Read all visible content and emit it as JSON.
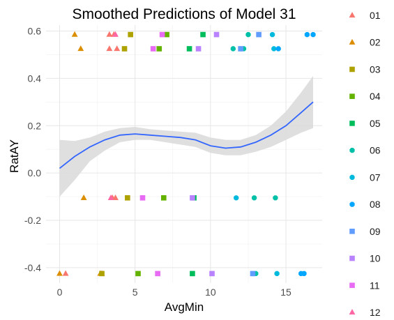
{
  "chart_data": {
    "type": "scatter",
    "title": "Smoothed Predictions of Model 31",
    "xlabel": "AvgMin",
    "ylabel": "RatAY",
    "xlim": [
      -0.9,
      17.4
    ],
    "ylim": [
      -0.465,
      0.625
    ],
    "x_ticks": [
      0,
      5,
      10,
      15
    ],
    "x_tick_labels": [
      "0",
      "5",
      "10",
      "15"
    ],
    "y_ticks": [
      -0.4,
      -0.2,
      0.0,
      0.2,
      0.4,
      0.6
    ],
    "y_tick_labels": [
      "-0.4",
      "-0.2",
      "0.0",
      "0.2",
      "0.4",
      "0.6"
    ],
    "grid": true,
    "legend_position": "right",
    "series": [
      {
        "name": "01",
        "color": "#F8766D",
        "shape": "triangle",
        "points": [
          [
            3.3,
            0.585
          ],
          [
            3.6,
            0.585
          ],
          [
            3.3,
            0.525
          ],
          [
            3.8,
            0.525
          ],
          [
            3.5,
            -0.105
          ],
          [
            3.7,
            -0.105
          ],
          [
            0.4,
            -0.425
          ],
          [
            2.8,
            -0.425
          ]
        ]
      },
      {
        "name": "02",
        "color": "#DB8E00",
        "shape": "triangle",
        "points": [
          [
            1.0,
            0.585
          ],
          [
            1.4,
            0.525
          ],
          [
            1.6,
            -0.105
          ],
          [
            0.0,
            -0.425
          ],
          [
            2.7,
            -0.425
          ]
        ]
      },
      {
        "name": "03",
        "color": "#AEA200",
        "shape": "square",
        "points": [
          [
            4.7,
            0.585
          ],
          [
            4.3,
            0.525
          ],
          [
            4.5,
            -0.105
          ],
          [
            2.8,
            -0.425
          ]
        ]
      },
      {
        "name": "04",
        "color": "#64B200",
        "shape": "square",
        "points": [
          [
            7.1,
            0.585
          ],
          [
            6.6,
            0.525
          ],
          [
            6.9,
            -0.105
          ],
          [
            5.2,
            -0.425
          ]
        ]
      },
      {
        "name": "05",
        "color": "#00BD5C",
        "shape": "square",
        "points": [
          [
            9.5,
            0.585
          ],
          [
            8.6,
            0.525
          ],
          [
            8.9,
            -0.105
          ],
          [
            8.8,
            -0.425
          ]
        ]
      },
      {
        "name": "06",
        "color": "#00C1A7",
        "shape": "hexagon",
        "points": [
          [
            12.5,
            0.585
          ],
          [
            11.5,
            0.525
          ],
          [
            12.2,
            0.525
          ],
          [
            12.9,
            -0.105
          ],
          [
            14.3,
            -0.105
          ],
          [
            13.0,
            -0.425
          ]
        ]
      },
      {
        "name": "07",
        "color": "#00BADE",
        "shape": "hexagon",
        "points": [
          [
            14.1,
            0.585
          ],
          [
            14.2,
            0.525
          ],
          [
            11.7,
            -0.105
          ],
          [
            14.4,
            -0.425
          ]
        ]
      },
      {
        "name": "08",
        "color": "#00A6FF",
        "shape": "hexagon",
        "points": [
          [
            16.4,
            0.585
          ],
          [
            16.8,
            0.585
          ],
          [
            14.5,
            0.525
          ],
          [
            16.0,
            -0.425
          ],
          [
            16.2,
            -0.425
          ]
        ]
      },
      {
        "name": "09",
        "color": "#619CFF",
        "shape": "square",
        "points": [
          [
            13.2,
            0.585
          ],
          [
            12.0,
            0.525
          ],
          [
            12.8,
            -0.425
          ]
        ]
      },
      {
        "name": "10",
        "color": "#B983FF",
        "shape": "square",
        "points": [
          [
            10.4,
            0.585
          ],
          [
            9.2,
            0.525
          ],
          [
            8.8,
            -0.105
          ],
          [
            10.1,
            -0.425
          ]
        ]
      },
      {
        "name": "11",
        "color": "#E76BF3",
        "shape": "square",
        "points": [
          [
            6.8,
            0.585
          ],
          [
            6.2,
            0.525
          ],
          [
            5.5,
            -0.105
          ],
          [
            6.5,
            -0.425
          ]
        ]
      },
      {
        "name": "12",
        "color": "#FF67A4",
        "shape": "triangle",
        "points": [
          [
            3.7,
            0.585
          ],
          [
            3.4,
            -0.105
          ]
        ]
      }
    ],
    "smooth": {
      "color": "#3366FF",
      "band_color": "#d9d9d9",
      "x": [
        0,
        1,
        2,
        3,
        4,
        5,
        6,
        7,
        8,
        9,
        10,
        11,
        12,
        13,
        14,
        15,
        16,
        16.8
      ],
      "y": [
        0.02,
        0.07,
        0.11,
        0.14,
        0.16,
        0.165,
        0.16,
        0.155,
        0.15,
        0.14,
        0.115,
        0.105,
        0.11,
        0.13,
        0.16,
        0.2,
        0.255,
        0.3
      ],
      "lower": [
        -0.1,
        -0.03,
        0.05,
        0.095,
        0.13,
        0.14,
        0.14,
        0.13,
        0.12,
        0.11,
        0.085,
        0.075,
        0.075,
        0.09,
        0.11,
        0.14,
        0.17,
        0.19
      ],
      "upper": [
        0.14,
        0.135,
        0.15,
        0.175,
        0.19,
        0.195,
        0.185,
        0.18,
        0.175,
        0.17,
        0.15,
        0.14,
        0.14,
        0.16,
        0.2,
        0.26,
        0.34,
        0.41
      ]
    }
  }
}
